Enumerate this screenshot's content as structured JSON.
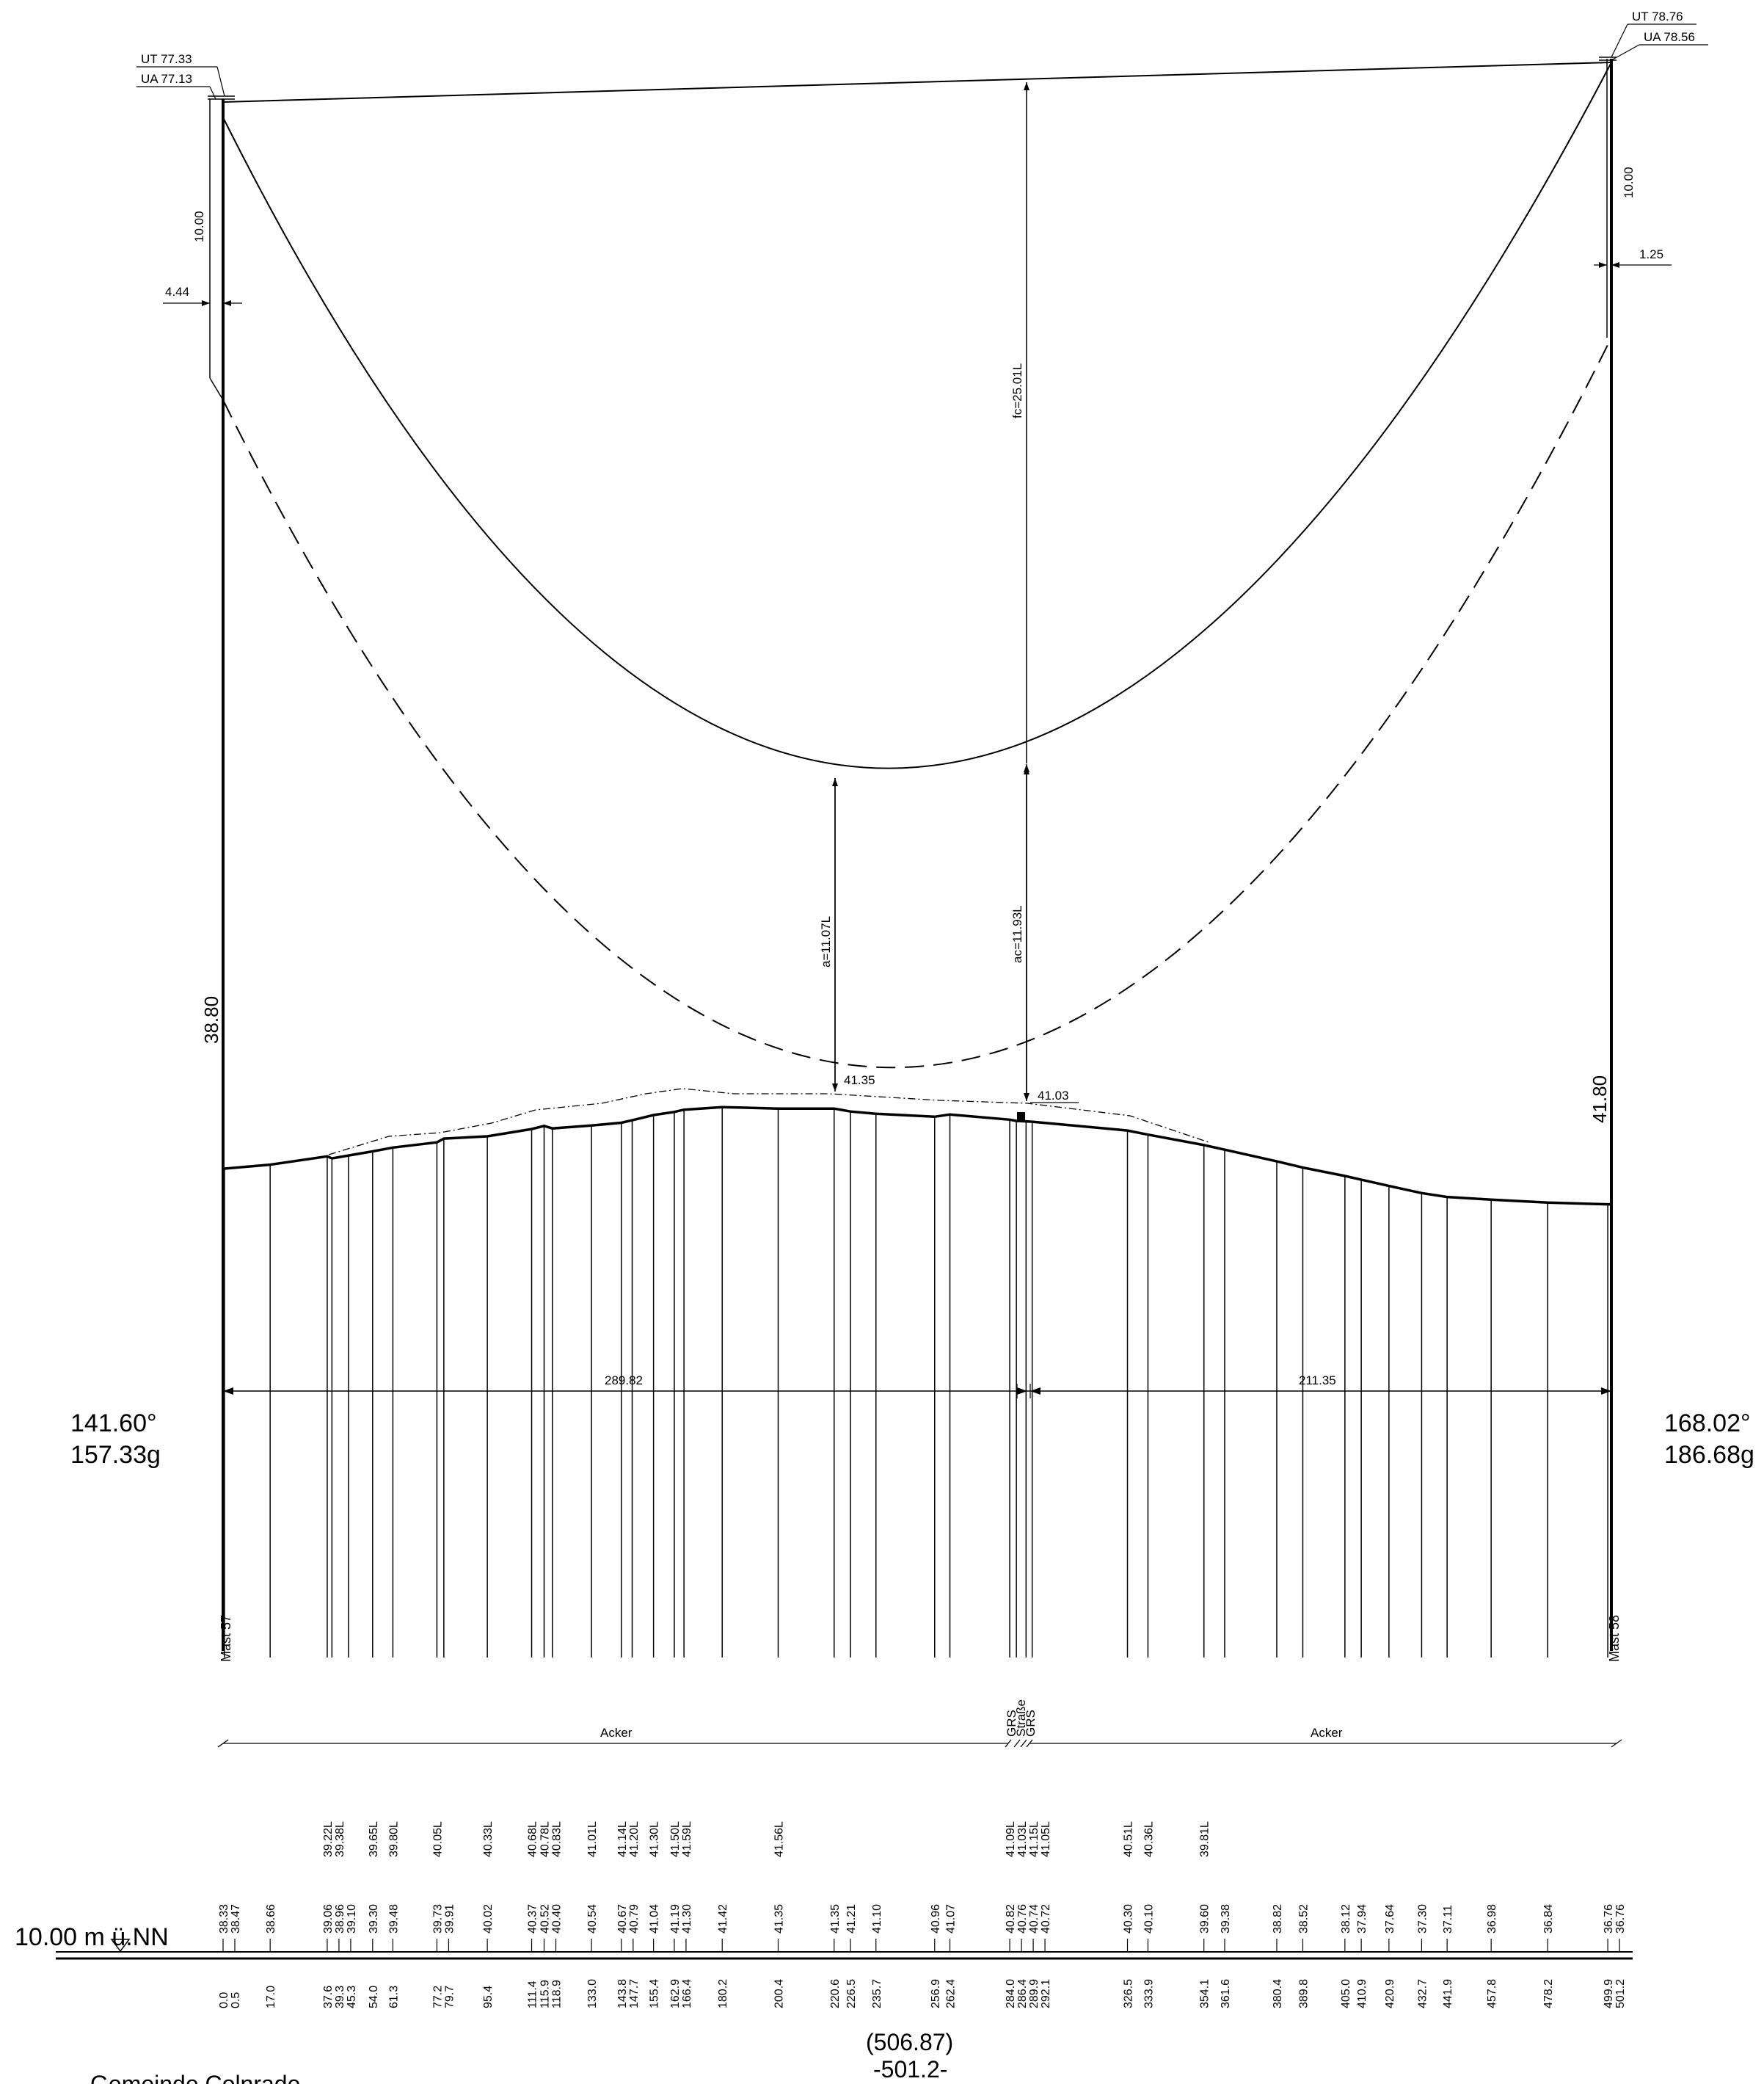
{
  "left_mast": {
    "name": "Mast 57",
    "ut": "UT 77.33",
    "ua": "UA 77.13",
    "insulator_len": "10.00",
    "offset": "4.44",
    "base_height": "38.80",
    "angle_deg": "141.60°",
    "angle_gon": "157.33g"
  },
  "right_mast": {
    "name": "Mast 58",
    "ut": "UT 78.76",
    "ua": "UA 78.56",
    "insulator_len": "10.00",
    "offset": "1.25",
    "base_height": "41.80",
    "angle_deg": "168.02°",
    "angle_gon": "186.68g"
  },
  "sag_labels": {
    "fc": "fc=25.01L",
    "a": "a=11.07L",
    "ac": "ac=11.93L"
  },
  "ground_marks": {
    "a": "41.35",
    "ac": "41.03"
  },
  "span_dimensions": [
    "289.82",
    "211.35"
  ],
  "land_use": {
    "left": "Acker",
    "right": "Acker",
    "crossing": [
      "GRS",
      "Straße",
      "GRS"
    ]
  },
  "datum_label": "10.00 m ü.NN",
  "span_total": "(506.87)",
  "span_id": "-501.2-",
  "footer_text": "Gemeinde Colnrade",
  "stations": [
    {
      "dist": "0.0",
      "height": "38.33"
    },
    {
      "dist": "0.5",
      "height": "38.47"
    },
    {
      "dist": "17.0",
      "height": "38.66"
    },
    {
      "dist": "37.6",
      "height": "39.06",
      "top": "39.22L"
    },
    {
      "dist": "39.3",
      "height": "38.96",
      "top": "39.38L"
    },
    {
      "dist": "45.3",
      "height": "39.10"
    },
    {
      "dist": "54.0",
      "height": "39.30",
      "top": "39.65L"
    },
    {
      "dist": "61.3",
      "height": "39.48",
      "top": "39.80L"
    },
    {
      "dist": "77.2",
      "height": "39.73",
      "top": "40.05L"
    },
    {
      "dist": "79.7",
      "height": "39.91"
    },
    {
      "dist": "95.4",
      "height": "40.02",
      "top": "40.33L"
    },
    {
      "dist": "111.4",
      "height": "40.37",
      "top": "40.68L"
    },
    {
      "dist": "115.9",
      "height": "40.52",
      "top": "40.78L"
    },
    {
      "dist": "118.9",
      "height": "40.40",
      "top": "40.83L"
    },
    {
      "dist": "133.0",
      "height": "40.54",
      "top": "41.01L"
    },
    {
      "dist": "143.8",
      "height": "40.67",
      "top": "41.14L"
    },
    {
      "dist": "147.7",
      "height": "40.79",
      "top": "41.20L"
    },
    {
      "dist": "155.4",
      "height": "41.04",
      "top": "41.30L"
    },
    {
      "dist": "162.9",
      "height": "41.19",
      "top": "41.50L"
    },
    {
      "dist": "166.4",
      "height": "41.30",
      "top": "41.59L"
    },
    {
      "dist": "180.2",
      "height": "41.42"
    },
    {
      "dist": "200.4",
      "height": "41.35",
      "top": "41.56L"
    },
    {
      "dist": "220.6",
      "height": "41.35"
    },
    {
      "dist": "226.5",
      "height": "41.21"
    },
    {
      "dist": "235.7",
      "height": "41.10"
    },
    {
      "dist": "256.9",
      "height": "40.96"
    },
    {
      "dist": "262.4",
      "height": "41.07"
    },
    {
      "dist": "284.0",
      "height": "40.82",
      "top": "41.09L"
    },
    {
      "dist": "286.4",
      "height": "40.76",
      "top": "41.03L"
    },
    {
      "dist": "289.9",
      "height": "40.74",
      "top": "41.15L"
    },
    {
      "dist": "292.1",
      "height": "40.72",
      "top": "41.05L"
    },
    {
      "dist": "326.5",
      "height": "40.30",
      "top": "40.51L"
    },
    {
      "dist": "333.9",
      "height": "40.10",
      "top": "40.36L"
    },
    {
      "dist": "354.1",
      "height": "39.60",
      "top": "39.81L"
    },
    {
      "dist": "361.6",
      "height": "39.38"
    },
    {
      "dist": "380.4",
      "height": "38.82"
    },
    {
      "dist": "389.8",
      "height": "38.52"
    },
    {
      "dist": "405.0",
      "height": "38.12"
    },
    {
      "dist": "410.9",
      "height": "37.94"
    },
    {
      "dist": "420.9",
      "height": "37.64"
    },
    {
      "dist": "432.7",
      "height": "37.30"
    },
    {
      "dist": "441.9",
      "height": "37.11"
    },
    {
      "dist": "457.8",
      "height": "36.98"
    },
    {
      "dist": "478.2",
      "height": "36.84"
    },
    {
      "dist": "499.9",
      "height": "36.76"
    },
    {
      "dist": "501.2",
      "height": "36.76"
    }
  ]
}
